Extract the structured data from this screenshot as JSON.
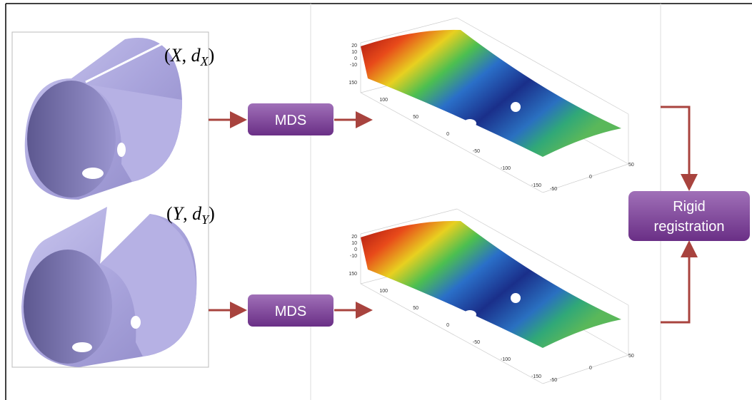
{
  "inputs": [
    {
      "label_parts": [
        "(",
        "X",
        ", ",
        "d",
        "X",
        ")"
      ]
    },
    {
      "label_parts": [
        "(",
        "Y",
        ", ",
        "d",
        "Y",
        ")"
      ]
    }
  ],
  "steps": [
    {
      "label": "MDS"
    },
    {
      "label": "MDS"
    }
  ],
  "registration": {
    "label_lines": [
      "Rigid",
      "registration"
    ]
  },
  "plot_axes": {
    "zticks": [
      20,
      10,
      0,
      -10
    ],
    "xticks": [
      150,
      100,
      50,
      0,
      -50,
      -100,
      -150
    ],
    "yticks": [
      50,
      0,
      -50
    ]
  }
}
